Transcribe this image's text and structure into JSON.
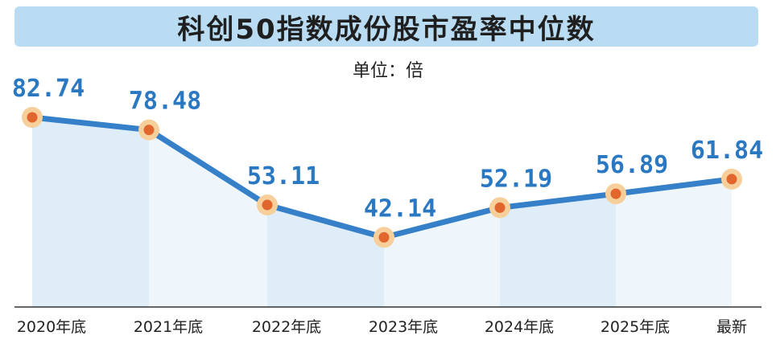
{
  "title": "科创50指数成份股市盈率中位数",
  "unit": "单位：倍",
  "chart_data": {
    "type": "line",
    "title": "科创50指数成份股市盈率中位数",
    "ylabel": "单位：倍",
    "categories": [
      "2020年底",
      "2021年底",
      "2022年底",
      "2023年底",
      "2024年底",
      "2025年底",
      "最新"
    ],
    "values": [
      82.74,
      78.48,
      53.11,
      42.14,
      52.19,
      56.89,
      61.84
    ],
    "value_labels": [
      "82.74",
      "78.48",
      "53.11",
      "42.14",
      "52.19",
      "56.89",
      "61.84"
    ],
    "colors": {
      "line": "#3580c8",
      "area": "#deedf8",
      "marker_fill": "#e0662e",
      "marker_ring": "#f6cf9a",
      "label": "#2a78c2"
    }
  }
}
